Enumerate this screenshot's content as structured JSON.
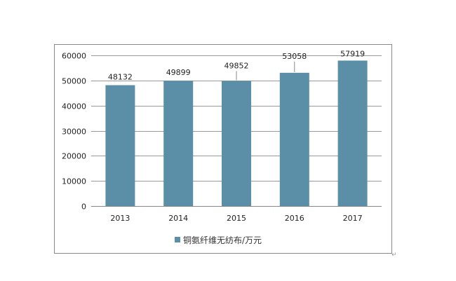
{
  "chart_data": {
    "type": "bar",
    "categories": [
      "2013",
      "2014",
      "2015",
      "2016",
      "2017"
    ],
    "series": [
      {
        "name": "铜氨纤维无纺布/万元",
        "values": [
          48132,
          49899,
          49852,
          53058,
          57919
        ],
        "color": "#5B8FA8"
      }
    ],
    "data_labels": [
      "48132",
      "49899",
      "49852",
      "53058",
      "57919"
    ],
    "ylim": [
      0,
      60000
    ],
    "yticks": [
      "0",
      "10000",
      "20000",
      "30000",
      "40000",
      "50000",
      "60000"
    ],
    "grid": true,
    "legend_position": "bottom",
    "xlabel": "",
    "ylabel": ""
  }
}
